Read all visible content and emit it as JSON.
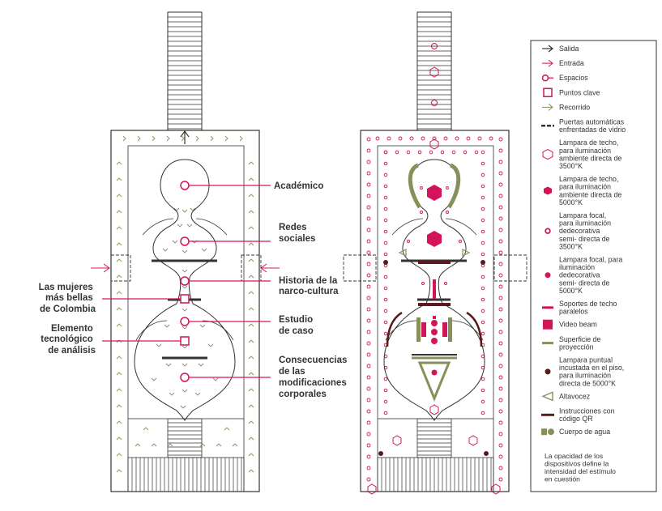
{
  "colors": {
    "magenta": "#d4145a",
    "dark": "#333333",
    "olive": "#8a8f5a",
    "maroon": "#5a1a1a"
  },
  "labels": {
    "academico": [
      "Académico"
    ],
    "redes": [
      "Redes",
      "sociales"
    ],
    "historia": [
      "Historia de la",
      "narco-cultura"
    ],
    "estudio": [
      "Estudio",
      "de caso"
    ],
    "consecuencias": [
      "Consecuencias",
      "de las",
      "modificaciones",
      "corporales"
    ],
    "mujeres": [
      "Las mujeres",
      "más bellas",
      "de Colombia"
    ],
    "elemento": [
      "Elemento",
      "tecnológico",
      "de análisis"
    ]
  },
  "legend": [
    {
      "icon": "arrow-dark-icon",
      "lines": [
        "Salida"
      ]
    },
    {
      "icon": "arrow-magenta-icon",
      "lines": [
        "Entrada"
      ]
    },
    {
      "icon": "space-circle-icon",
      "lines": [
        "Espacios"
      ]
    },
    {
      "icon": "key-square-icon",
      "lines": [
        "Puntos clave"
      ]
    },
    {
      "icon": "arrow-olive-icon",
      "lines": [
        "Recorrido"
      ]
    },
    {
      "icon": "dashed-line-icon",
      "lines": [
        "Puertas automáticas",
        "enfrentadas de vidrio"
      ]
    },
    {
      "icon": "hexagon-outline-icon",
      "lines": [
        "Lampara de techo,",
        "para iluminación",
        "ambiente directa de",
        "3500°K"
      ]
    },
    {
      "icon": "hexagon-filled-icon",
      "lines": [
        "Lampara de techo,",
        "para iluminación",
        "ambiente directa de",
        "5000°K"
      ]
    },
    {
      "icon": "ring-icon",
      "lines": [
        "Lampara focal,",
        "para iluminación",
        "dedecorativa",
        "semi- directa de",
        "3500°K"
      ]
    },
    {
      "icon": "dot-icon",
      "lines": [
        "Lampara focal, para",
        "iluminación",
        "dedecorativa",
        "semi- directa de",
        "5000°K"
      ]
    },
    {
      "icon": "support-bar-icon",
      "lines": [
        "Soportes de techo",
        "paralelos"
      ]
    },
    {
      "icon": "video-beam-icon",
      "lines": [
        "Video beam"
      ]
    },
    {
      "icon": "projection-surface-icon",
      "lines": [
        "Superficie de",
        "proyección"
      ]
    },
    {
      "icon": "floor-light-icon",
      "lines": [
        "Lampara puntual",
        "incustada en el piso,",
        "para iluminación",
        "directa de 5000°K"
      ]
    },
    {
      "icon": "speaker-icon",
      "lines": [
        "Altavocez"
      ]
    },
    {
      "icon": "qr-bar-icon",
      "lines": [
        "Instrucciones con",
        "código QR"
      ]
    },
    {
      "icon": "water-icon",
      "lines": [
        "Cuerpo de agua"
      ]
    }
  ],
  "note": [
    "La opacidad de los",
    "dispositivos define la",
    "intensidad del estímulo",
    "en cuestión"
  ]
}
